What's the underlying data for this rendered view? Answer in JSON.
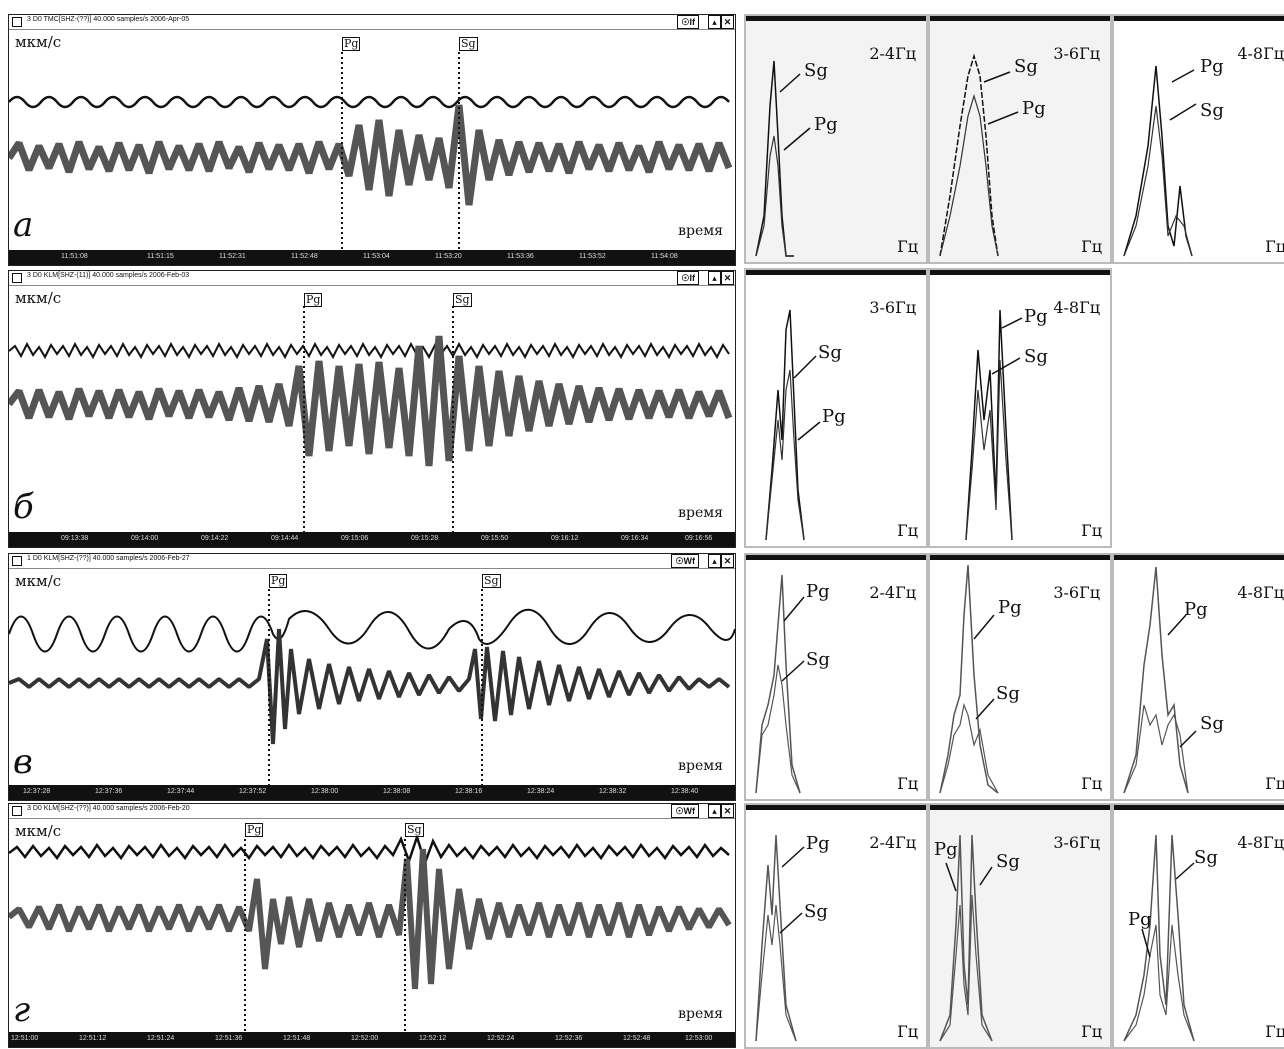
{
  "panels": [
    {
      "title": "3   D0   TMC[SHZ-(??)] 40.000 samples/s 2006-Apr-05",
      "mode": "☉If",
      "unit": "мкм/с",
      "letter": "а",
      "time_label": "время",
      "pg_label": "Pg",
      "sg_label": "Sg",
      "ticks": [
        "11:51:08",
        "11:51:15",
        "11:52:31",
        "11:52:48",
        "11:53:04",
        "11:53:20",
        "11:53:36",
        "11:53:52",
        "11:54:08"
      ]
    },
    {
      "title": "3   D0   KLM[SHZ-(11)] 40.000 samples/s 2006-Feb-03",
      "mode": "☉If",
      "unit": "мкм/с",
      "letter": "б",
      "time_label": "время",
      "pg_label": "Pg",
      "sg_label": "Sg",
      "ticks": [
        "09:13:38",
        "09:14:00",
        "09:14:22",
        "09:14:44",
        "09:15:06",
        "09:15:28",
        "09:15:50",
        "09:16:12",
        "09:16:34",
        "09:16:56"
      ]
    },
    {
      "title": "1   D0   KLM[SHZ-(??)] 40.000 samples/s 2006-Feb-27",
      "mode": "☉Wf",
      "unit": "мкм/с",
      "letter": "в",
      "time_label": "время",
      "pg_label": "Pg",
      "sg_label": "Sg",
      "ticks": [
        "12:37:28",
        "12:37:36",
        "12:37:44",
        "12:37:52",
        "12:38:00",
        "12:38:08",
        "12:38:16",
        "12:38:24",
        "12:38:32",
        "12:38:40"
      ]
    },
    {
      "title": "3   D0   KLM[SHZ-(??)] 40.000 samples/s 2006-Feb-20",
      "mode": "☉Wf",
      "unit": "мкм/с",
      "letter": "г",
      "time_label": "время",
      "pg_label": "Pg",
      "sg_label": "Sg",
      "ticks": [
        "12:51:00",
        "12:51:12",
        "12:51:24",
        "12:51:36",
        "12:51:48",
        "12:52:00",
        "12:52:12",
        "12:52:24",
        "12:52:36",
        "12:52:48",
        "12:53:00"
      ]
    }
  ],
  "spectra": [
    {
      "band": "2-4Гц",
      "hz": "Гц",
      "first": "Sg",
      "second": "Pg"
    },
    {
      "band": "3-6Гц",
      "hz": "Гц",
      "first": "Sg",
      "second": "Pg"
    },
    {
      "band": "4-8Гц",
      "hz": "Гц",
      "first": "Pg",
      "second": "Sg"
    },
    {
      "band": "3-6Гц",
      "hz": "Гц",
      "first": "Sg",
      "second": "Pg"
    },
    {
      "band": "4-8Гц",
      "hz": "Гц",
      "first": "Pg",
      "second": "Sg"
    },
    {
      "band": "2-4Гц",
      "hz": "Гц",
      "first": "Pg",
      "second": "Sg"
    },
    {
      "band": "3-6Гц",
      "hz": "Гц",
      "first": "Pg",
      "second": "Sg"
    },
    {
      "band": "4-8Гц",
      "hz": "Гц",
      "first": "Pg",
      "second": "Sg"
    },
    {
      "band": "2-4Гц",
      "hz": "Гц",
      "first": "Pg",
      "second": "Sg"
    },
    {
      "band": "3-6Гц",
      "hz": "Гц",
      "first": "Pg",
      "second": "Sg"
    },
    {
      "band": "4-8Гц",
      "hz": "Гц",
      "first": "Sg",
      "second": "Pg"
    }
  ]
}
